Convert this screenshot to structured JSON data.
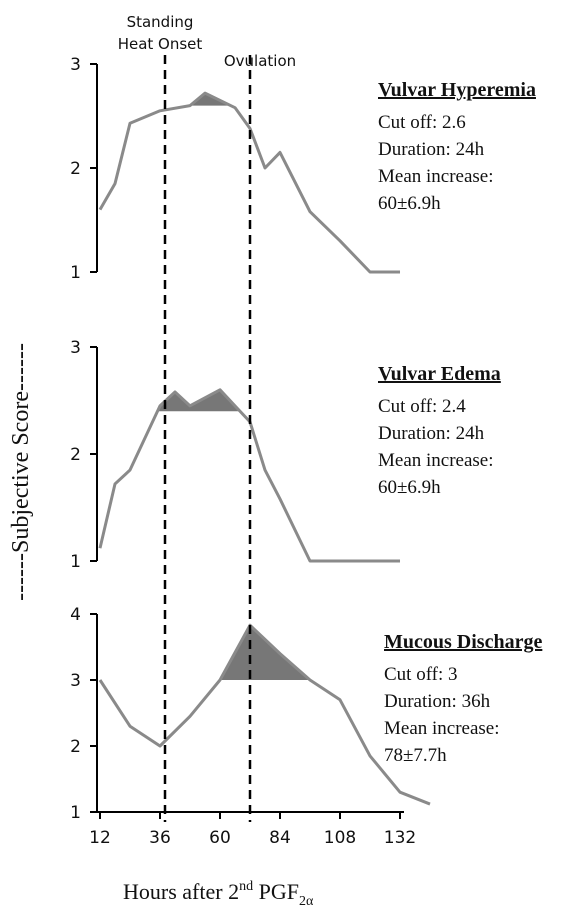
{
  "figure": {
    "ylabel": "------Subjective Score------",
    "xlabel_main": "Hours after 2",
    "xlabel_sup": "nd",
    "xlabel_tail": " PGF",
    "xlabel_sub": "2α",
    "markers": [
      {
        "line1": "Standing",
        "line2": "Heat Onset",
        "x": 38
      },
      {
        "line1": "",
        "line2": "Ovulation",
        "x": 72
      }
    ]
  },
  "chart_data": [
    {
      "type": "line",
      "title": "Vulvar Hyperemia",
      "info": [
        "Cut off: 2.6",
        "Duration: 24h",
        "Mean increase:",
        "60±6.9h"
      ],
      "cutoff": 2.6,
      "ylim": [
        1,
        3
      ],
      "yticks": [
        "1",
        "2",
        "3"
      ],
      "xlim": [
        12,
        132
      ],
      "x": [
        12,
        18,
        24,
        36,
        48,
        54,
        66,
        72,
        78,
        84,
        96,
        108,
        120,
        132
      ],
      "values": [
        1.6,
        1.85,
        2.43,
        2.55,
        2.6,
        2.72,
        2.58,
        2.38,
        2.0,
        2.15,
        1.58,
        1.3,
        1.0,
        1.0
      ]
    },
    {
      "type": "line",
      "title": "Vulvar Edema",
      "info": [
        "Cut off: 2.4",
        "Duration: 24h",
        "Mean increase:",
        "60±6.9h"
      ],
      "cutoff": 2.4,
      "ylim": [
        1,
        3
      ],
      "yticks": [
        "1",
        "2",
        "3"
      ],
      "xlim": [
        12,
        132
      ],
      "x": [
        12,
        18,
        24,
        36,
        42,
        48,
        60,
        66,
        72,
        78,
        84,
        96,
        108,
        120,
        132
      ],
      "values": [
        1.12,
        1.72,
        1.85,
        2.45,
        2.58,
        2.45,
        2.6,
        2.45,
        2.3,
        1.85,
        1.58,
        1.0,
        1.0,
        1.0,
        1.0
      ]
    },
    {
      "type": "line",
      "title": "Mucous Discharge",
      "info": [
        "Cut off: 3",
        "Duration: 36h",
        "Mean increase:",
        "78±7.7h"
      ],
      "cutoff": 3,
      "ylim": [
        1,
        4
      ],
      "yticks": [
        "1",
        "2",
        "3",
        "4"
      ],
      "xlim": [
        12,
        144
      ],
      "xticks": [
        "12",
        "36",
        "60",
        "84",
        "108",
        "132"
      ],
      "x": [
        12,
        24,
        36,
        48,
        60,
        72,
        84,
        96,
        108,
        120,
        132,
        144
      ],
      "values": [
        3.0,
        2.3,
        2.0,
        2.45,
        3.0,
        3.83,
        3.4,
        3.0,
        2.7,
        1.85,
        1.3,
        1.12
      ]
    }
  ]
}
